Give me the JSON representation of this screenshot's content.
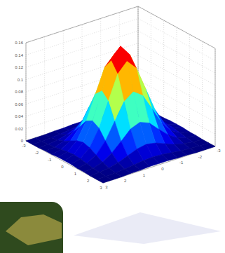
{
  "chart_data": {
    "type": "surface",
    "x": [
      -3,
      -2.5,
      -2,
      -1.5,
      -1,
      -0.5,
      0,
      0.5,
      1,
      1.5,
      2,
      2.5,
      3
    ],
    "y": [
      -3,
      -2.5,
      -2,
      -1.5,
      -1,
      -0.5,
      0,
      0.5,
      1,
      1.5,
      2,
      2.5,
      3
    ],
    "z": [
      [
        0,
        0,
        0,
        0.001,
        0.001,
        0.002,
        0.002,
        0.002,
        0.001,
        0.001,
        0,
        0,
        0
      ],
      [
        0,
        0,
        0.001,
        0.002,
        0.004,
        0.006,
        0.007,
        0.006,
        0.004,
        0.002,
        0.001,
        0,
        0
      ],
      [
        0,
        0.001,
        0.003,
        0.007,
        0.013,
        0.019,
        0.022,
        0.019,
        0.013,
        0.007,
        0.003,
        0.001,
        0
      ],
      [
        0.001,
        0.002,
        0.007,
        0.017,
        0.031,
        0.046,
        0.052,
        0.046,
        0.031,
        0.017,
        0.007,
        0.002,
        0.001
      ],
      [
        0.001,
        0.004,
        0.013,
        0.031,
        0.058,
        0.085,
        0.096,
        0.085,
        0.058,
        0.031,
        0.013,
        0.004,
        0.001
      ],
      [
        0.002,
        0.006,
        0.019,
        0.046,
        0.085,
        0.124,
        0.14,
        0.124,
        0.085,
        0.046,
        0.019,
        0.006,
        0.002
      ],
      [
        0.002,
        0.007,
        0.022,
        0.052,
        0.096,
        0.14,
        0.159,
        0.14,
        0.096,
        0.052,
        0.022,
        0.007,
        0.002
      ],
      [
        0.002,
        0.006,
        0.019,
        0.046,
        0.085,
        0.124,
        0.14,
        0.124,
        0.085,
        0.046,
        0.019,
        0.006,
        0.002
      ],
      [
        0.001,
        0.004,
        0.013,
        0.031,
        0.058,
        0.085,
        0.096,
        0.085,
        0.058,
        0.031,
        0.013,
        0.004,
        0.001
      ],
      [
        0.001,
        0.002,
        0.007,
        0.017,
        0.031,
        0.046,
        0.052,
        0.046,
        0.031,
        0.017,
        0.007,
        0.002,
        0.001
      ],
      [
        0,
        0.001,
        0.003,
        0.007,
        0.013,
        0.019,
        0.022,
        0.019,
        0.013,
        0.007,
        0.003,
        0.001,
        0
      ],
      [
        0,
        0,
        0.001,
        0.002,
        0.004,
        0.006,
        0.007,
        0.006,
        0.004,
        0.002,
        0.001,
        0,
        0
      ],
      [
        0,
        0,
        0,
        0.001,
        0.001,
        0.002,
        0.002,
        0.002,
        0.001,
        0.001,
        0,
        0,
        0
      ]
    ],
    "xlim": [
      -3,
      3
    ],
    "ylim": [
      -3,
      3
    ],
    "zlim": [
      0,
      0.16
    ],
    "xticks": [
      -3,
      -2,
      -1,
      0,
      1,
      2,
      3
    ],
    "yticks": [
      -3,
      -2,
      -1,
      0,
      1,
      2,
      3
    ],
    "zticks": [
      0,
      0.02,
      0.04,
      0.06,
      0.08,
      0.1,
      0.12,
      0.14,
      0.16
    ],
    "grid": true
  }
}
